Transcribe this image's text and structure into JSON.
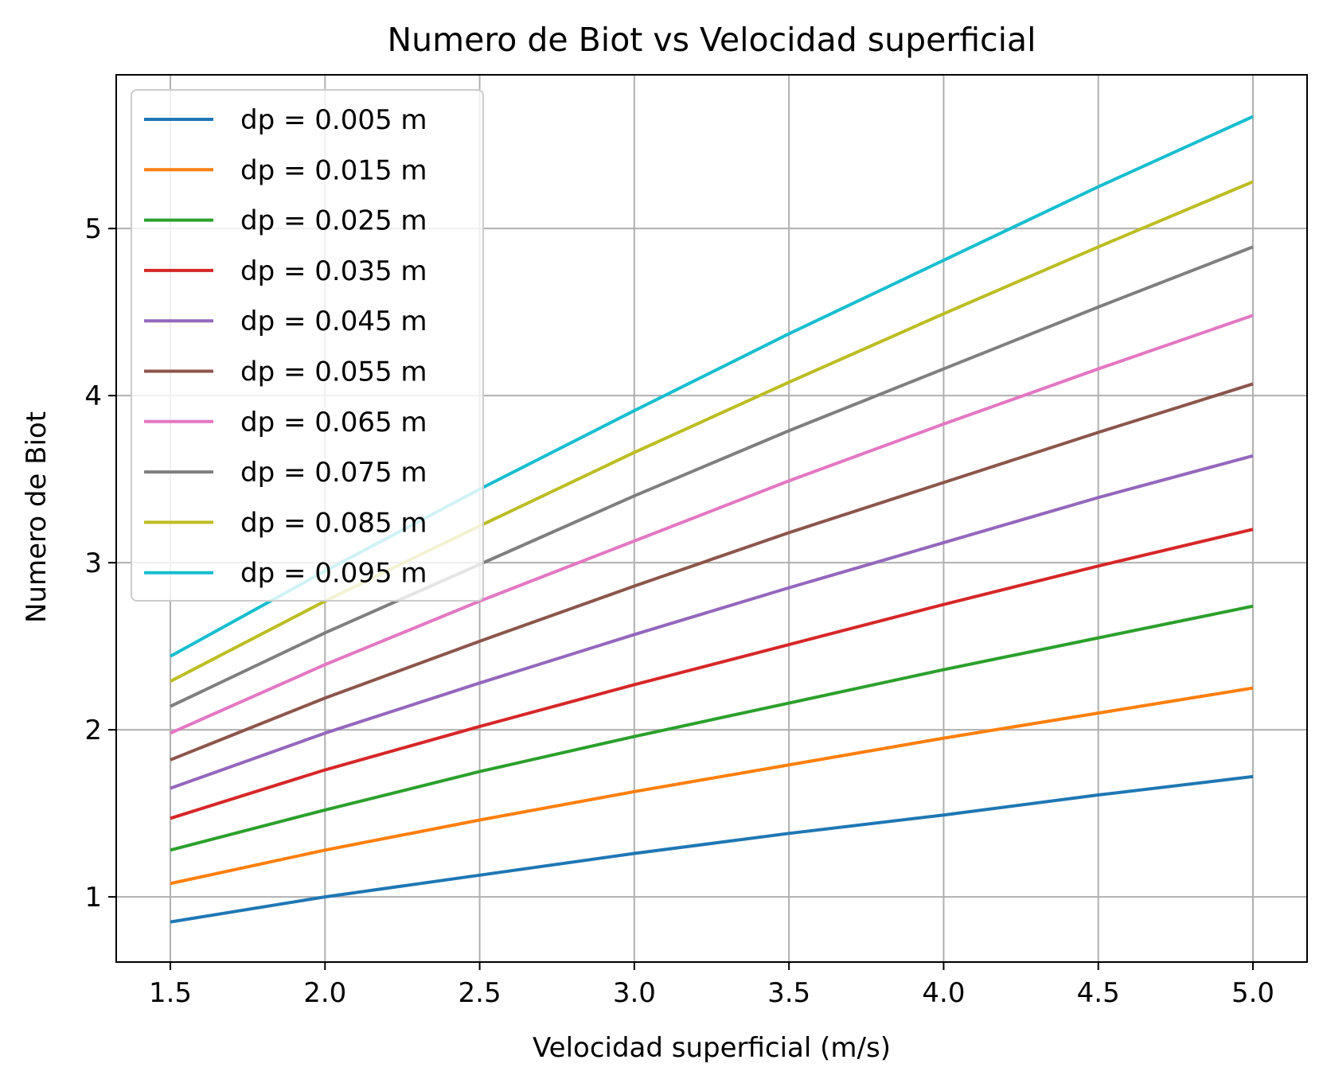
{
  "chart_data": {
    "type": "line",
    "title": "Numero de Biot vs Velocidad superficial",
    "xlabel": "Velocidad superficial (m/s)",
    "ylabel": "Numero de Biot",
    "xlim": [
      1.325,
      5.175
    ],
    "ylim": [
      0.61,
      5.92
    ],
    "xticks": [
      1.5,
      2.0,
      2.5,
      3.0,
      3.5,
      4.0,
      4.5,
      5.0
    ],
    "xtick_labels": [
      "1.5",
      "2.0",
      "2.5",
      "3.0",
      "3.5",
      "4.0",
      "4.5",
      "5.0"
    ],
    "yticks": [
      1,
      2,
      3,
      4,
      5
    ],
    "ytick_labels": [
      "1",
      "2",
      "3",
      "4",
      "5"
    ],
    "grid": true,
    "legend_position": "upper-left",
    "x": [
      1.5,
      2.0,
      2.5,
      3.0,
      3.5,
      4.0,
      4.5,
      5.0
    ],
    "series": [
      {
        "name": "dp = 0.005 m",
        "color": "#1f77b4",
        "values": [
          0.85,
          1.0,
          1.13,
          1.26,
          1.38,
          1.49,
          1.61,
          1.72
        ]
      },
      {
        "name": "dp = 0.015 m",
        "color": "#ff7f0e",
        "values": [
          1.08,
          1.28,
          1.46,
          1.63,
          1.79,
          1.95,
          2.1,
          2.25
        ]
      },
      {
        "name": "dp = 0.025 m",
        "color": "#2ca02c",
        "values": [
          1.28,
          1.52,
          1.75,
          1.96,
          2.16,
          2.36,
          2.55,
          2.74
        ]
      },
      {
        "name": "dp = 0.035 m",
        "color": "#d62728",
        "values": [
          1.47,
          1.76,
          2.02,
          2.27,
          2.51,
          2.75,
          2.98,
          3.2
        ]
      },
      {
        "name": "dp = 0.045 m",
        "color": "#9467bd",
        "values": [
          1.65,
          1.98,
          2.28,
          2.57,
          2.85,
          3.12,
          3.39,
          3.64
        ]
      },
      {
        "name": "dp = 0.055 m",
        "color": "#8c564b",
        "values": [
          1.82,
          2.19,
          2.53,
          2.86,
          3.18,
          3.48,
          3.78,
          4.07
        ]
      },
      {
        "name": "dp = 0.065 m",
        "color": "#e377c2",
        "values": [
          1.98,
          2.39,
          2.77,
          3.13,
          3.49,
          3.83,
          4.16,
          4.48
        ]
      },
      {
        "name": "dp = 0.075 m",
        "color": "#7f7f7f",
        "values": [
          2.14,
          2.58,
          2.99,
          3.4,
          3.79,
          4.16,
          4.53,
          4.89
        ]
      },
      {
        "name": "dp = 0.085 m",
        "color": "#bcbd22",
        "values": [
          2.29,
          2.77,
          3.22,
          3.66,
          4.08,
          4.49,
          4.89,
          5.28
        ]
      },
      {
        "name": "dp = 0.095 m",
        "color": "#17becf",
        "values": [
          2.44,
          2.95,
          3.44,
          3.91,
          4.37,
          4.81,
          5.25,
          5.67
        ]
      }
    ]
  }
}
